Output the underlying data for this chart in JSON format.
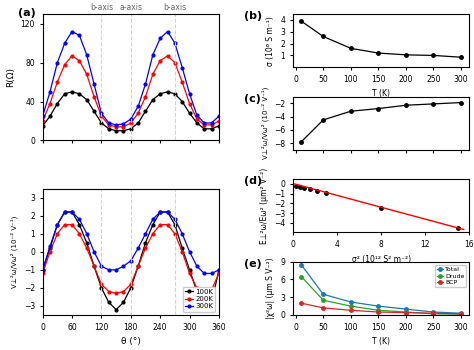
{
  "panel_a_top": {
    "theta": [
      0,
      15,
      30,
      45,
      60,
      75,
      90,
      105,
      120,
      135,
      150,
      165,
      180,
      195,
      210,
      225,
      240,
      255,
      270,
      285,
      300,
      315,
      330,
      345,
      360
    ],
    "R_100K": [
      15,
      25,
      38,
      48,
      50,
      48,
      42,
      30,
      18,
      12,
      10,
      10,
      12,
      18,
      30,
      42,
      48,
      50,
      48,
      40,
      28,
      18,
      12,
      12,
      15
    ],
    "R_200K": [
      20,
      38,
      60,
      78,
      87,
      82,
      68,
      45,
      25,
      16,
      14,
      14,
      18,
      28,
      45,
      68,
      82,
      87,
      80,
      60,
      38,
      22,
      16,
      16,
      20
    ],
    "R_300K": [
      25,
      50,
      80,
      100,
      112,
      108,
      88,
      58,
      28,
      18,
      16,
      17,
      22,
      35,
      58,
      88,
      105,
      112,
      100,
      75,
      48,
      26,
      18,
      18,
      25
    ],
    "colors": [
      "black",
      "red",
      "blue"
    ],
    "labels": [
      "100K",
      "200K",
      "300K"
    ],
    "ylabel": "R(Ω)",
    "ylim": [
      0,
      130
    ],
    "yticks": [
      0,
      40,
      80,
      120
    ],
    "vlines": [
      120,
      180,
      270
    ],
    "vline_labels": [
      "b-axis",
      "a-axis",
      "b-axis"
    ]
  },
  "panel_a_bottom": {
    "theta": [
      0,
      15,
      30,
      45,
      60,
      75,
      90,
      105,
      120,
      135,
      150,
      165,
      180,
      195,
      210,
      225,
      240,
      255,
      270,
      285,
      300,
      315,
      330,
      345,
      360
    ],
    "V_100K": [
      -1.0,
      0.2,
      1.5,
      2.2,
      2.2,
      1.5,
      0.5,
      -0.8,
      -2.0,
      -2.8,
      -3.2,
      -2.8,
      -2.0,
      -0.8,
      0.5,
      1.5,
      2.2,
      2.2,
      1.5,
      0.2,
      -1.0,
      -2.2,
      -3.0,
      -2.8,
      -1.0
    ],
    "V_200K": [
      -1.2,
      0.0,
      1.0,
      1.5,
      1.5,
      1.0,
      0.2,
      -0.8,
      -1.8,
      -2.2,
      -2.3,
      -2.2,
      -1.8,
      -0.8,
      0.2,
      1.0,
      1.5,
      1.5,
      1.0,
      0.0,
      -1.2,
      -2.0,
      -2.2,
      -2.1,
      -1.2
    ],
    "V_300K": [
      -1.0,
      0.3,
      1.5,
      2.2,
      2.2,
      1.8,
      1.0,
      0.0,
      -0.8,
      -1.0,
      -1.0,
      -0.8,
      -0.5,
      0.2,
      1.0,
      1.8,
      2.2,
      2.2,
      1.8,
      1.0,
      0.0,
      -0.8,
      -1.2,
      -1.2,
      -1.0
    ],
    "colors": [
      "black",
      "red",
      "blue"
    ],
    "labels": [
      "100K",
      "200K",
      "300K"
    ],
    "ylabel": "V⊥²ω/Vω² (10⁻² V⁻¹)",
    "ylim": [
      -3.5,
      3.5
    ],
    "yticks": [
      -3,
      -2,
      -1,
      0,
      1,
      2,
      3
    ],
    "xlabel": "θ (°)",
    "xticks": [
      0,
      60,
      120,
      180,
      240,
      300,
      360
    ],
    "vlines": [
      120,
      180,
      270
    ]
  },
  "panel_b": {
    "T": [
      10,
      50,
      100,
      150,
      200,
      250,
      300
    ],
    "sigma": [
      3.9,
      2.6,
      1.6,
      1.2,
      1.05,
      1.0,
      0.85
    ],
    "ylabel": "σ (10⁶ S m⁻¹)",
    "xlabel": "T (K)",
    "ylim": [
      0,
      4.5
    ],
    "yticks": [
      1,
      2,
      3,
      4
    ],
    "xticks": [
      0,
      50,
      100,
      150,
      200,
      250,
      300
    ]
  },
  "panel_c": {
    "T": [
      10,
      50,
      100,
      150,
      200,
      250,
      300
    ],
    "V": [
      -7.8,
      -4.5,
      -3.2,
      -2.8,
      -2.3,
      -2.1,
      -1.9
    ],
    "ylabel": "V⊥²ω/Vω² (10⁻² V⁻¹)",
    "xlabel": "T (K)",
    "ylim": [
      -9,
      -1
    ],
    "yticks": [
      -8,
      -6,
      -4,
      -2
    ],
    "xticks": [
      0,
      50,
      100,
      150,
      200,
      250,
      300
    ]
  },
  "panel_d": {
    "sigma2_data": [
      0.3,
      0.6,
      1.0,
      1.5,
      2.2,
      3.0,
      8.0,
      15.0
    ],
    "E_data": [
      -0.2,
      -0.3,
      -0.4,
      -0.5,
      -0.7,
      -0.9,
      -2.5,
      -4.5
    ],
    "fit_x": [
      0,
      15.5
    ],
    "fit_y": [
      0.05,
      -4.7
    ],
    "ylabel": "E⊥²ω/Eω² (μm² V⁻²)",
    "xlabel": "σ² (10¹² S² m⁻²)",
    "ylim": [
      -5,
      0.5
    ],
    "yticks": [
      -4,
      -3,
      -2,
      -1,
      0
    ],
    "xlim": [
      0,
      16
    ],
    "xticks": [
      0,
      4,
      8,
      12,
      16
    ]
  },
  "panel_e": {
    "T": [
      10,
      50,
      100,
      150,
      200,
      250,
      300
    ],
    "total": [
      8.5,
      3.5,
      2.2,
      1.5,
      1.0,
      0.5,
      0.3
    ],
    "drude": [
      6.5,
      2.5,
      1.5,
      0.8,
      0.5,
      0.2,
      0.15
    ],
    "bcp": [
      2.0,
      1.2,
      0.8,
      0.5,
      0.4,
      0.3,
      0.2
    ],
    "colors": [
      "#1f77b4",
      "#2ca02c",
      "#d62728"
    ],
    "labels": [
      "Total",
      "Drude",
      "BCP"
    ],
    "ylabel": "|χ²ω| (μm S V⁻²)",
    "xlabel": "T (K)",
    "ylim": [
      0,
      9
    ],
    "yticks": [
      0,
      3,
      6,
      9
    ],
    "xticks": [
      0,
      50,
      100,
      150,
      200,
      250,
      300
    ]
  }
}
